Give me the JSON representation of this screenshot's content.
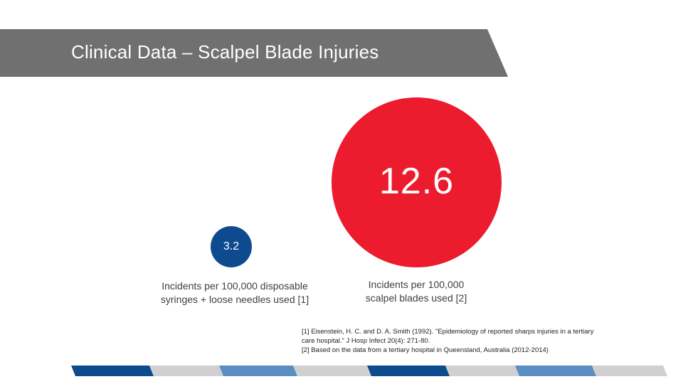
{
  "slide": {
    "title": "Clinical Data – Scalpel Blade Injuries"
  },
  "stats": {
    "scalpel": {
      "value": "12.6",
      "caption_line1": "Incidents per 100,000",
      "caption_line2": "scalpel blades used [2]",
      "color": "#ec1c2e"
    },
    "syringe": {
      "value": "3.2",
      "caption_line1": "Incidents per 100,000 disposable",
      "caption_line2": "syringes + loose needles used [1]",
      "color": "#0d4a8e"
    }
  },
  "references": {
    "ref1_line1": "[1] Eisenstein, H. C. and D. A. Smith (1992). \"Epidemiology of reported sharps injuries in a tertiary",
    "ref1_line2": "care hospital.\" J Hosp Infect 20(4): 271-80.",
    "ref2": "[2] Based on the data from a tertiary hospital in Queensland, Australia (2012-2014)"
  },
  "colors": {
    "banner": "#707070",
    "dark_blue": "#0d4a8e",
    "light_blue": "#5b8fc4",
    "grey": "#d0d0d0"
  }
}
